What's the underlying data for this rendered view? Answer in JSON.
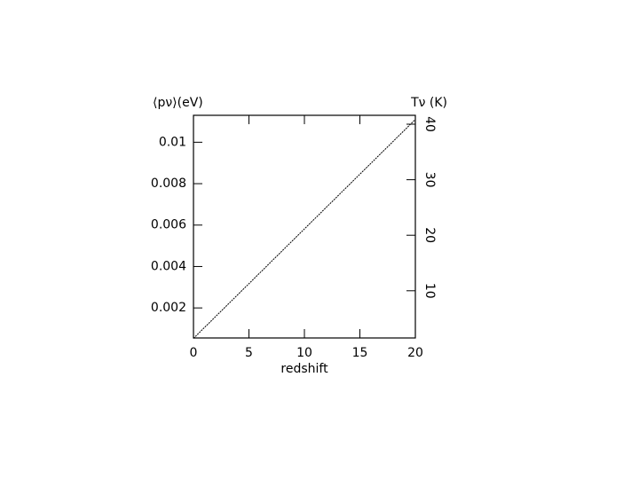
{
  "chart_data": {
    "type": "line",
    "y_label": "⟨pν⟩(eV)",
    "y2_label": "Tν (K)",
    "x_label": "redshift",
    "x": [
      0,
      20
    ],
    "series": [
      {
        "color": "#000000",
        "values": [
          0.00053,
          0.0111
        ]
      }
    ],
    "xlim": [
      0,
      20
    ],
    "xticks": [
      0,
      5,
      10,
      15,
      20
    ],
    "ylim": [
      0.00055,
      0.0113
    ],
    "yticks": [
      0.002,
      0.004,
      0.006,
      0.008,
      0.01
    ],
    "y2lim": [
      1.5,
      41.6
    ],
    "y2ticks": [
      10,
      20,
      30,
      40
    ]
  }
}
